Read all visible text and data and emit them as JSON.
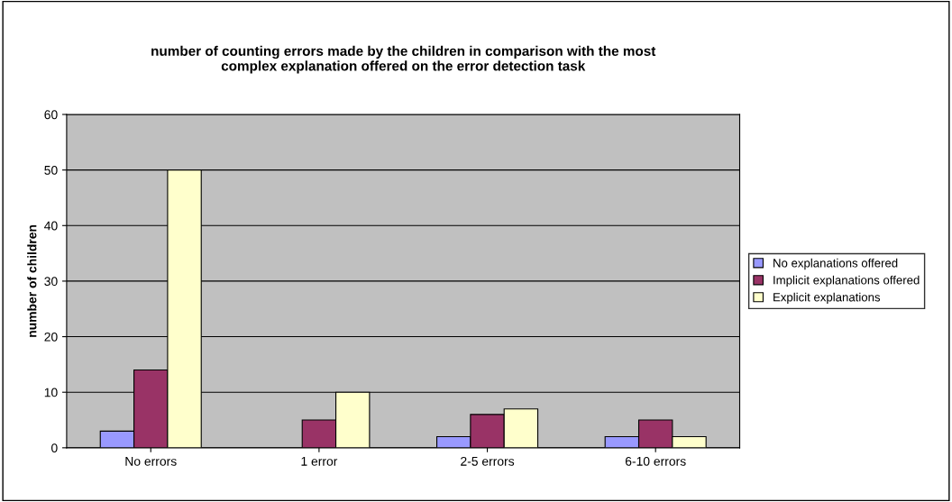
{
  "chart_data": {
    "type": "bar",
    "title": "number of counting errors made by the children in comparison with the most\ncomplex explanation offered on the error detection task",
    "ylabel": "number of children",
    "categories": [
      "No errors",
      "1 error",
      "2-5 errors",
      "6-10 errors"
    ],
    "series": [
      {
        "name": "No explanations offered",
        "color": "#9999ff",
        "values": [
          3,
          0,
          2,
          2
        ]
      },
      {
        "name": "Implicit explanations offered",
        "color": "#993366",
        "values": [
          14,
          5,
          6,
          5
        ]
      },
      {
        "name": "Explicit explanations",
        "color": "#ffffcc",
        "values": [
          50,
          10,
          7,
          2
        ]
      }
    ],
    "ylim": [
      0,
      60
    ],
    "yticks": [
      0,
      10,
      20,
      30,
      40,
      50,
      60
    ],
    "grid": "y",
    "legend": "right"
  }
}
